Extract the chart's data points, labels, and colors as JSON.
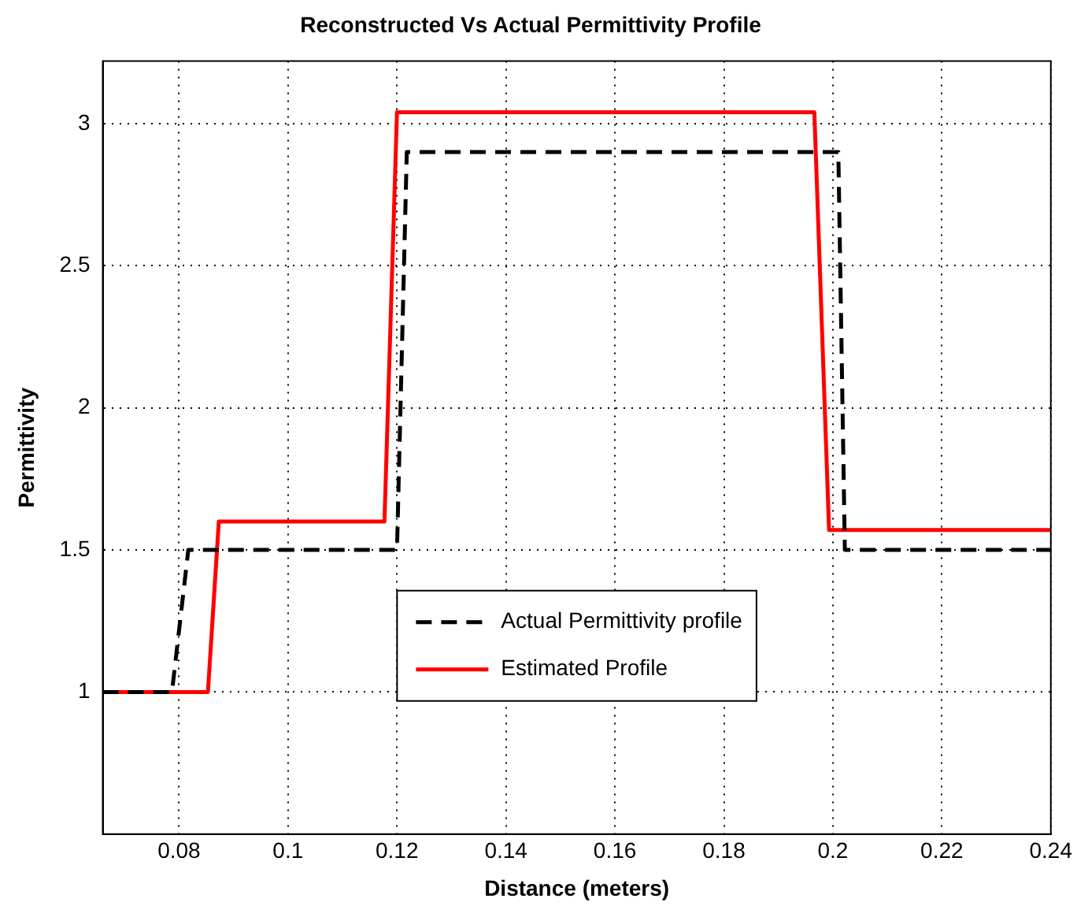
{
  "chart_data": {
    "type": "line",
    "title": "Reconstructed Vs Actual Permittivity Profile",
    "xlabel": "Distance (meters)",
    "ylabel": "Permittivity",
    "xlim": [
      0.066,
      0.24
    ],
    "xticks": [
      0.08,
      0.1,
      0.12,
      0.14,
      0.16,
      0.18,
      0.2,
      0.22,
      0.24
    ],
    "ylim": [
      0.5,
      3.22
    ],
    "yticks": [
      1,
      1.5,
      2,
      2.5,
      3
    ],
    "grid": true,
    "legend": "bottom",
    "marker": "none",
    "series": [
      {
        "name": "Actual Permittivity profile",
        "color": "#000000",
        "line_style": "dashed",
        "x": [
          0.066,
          0.0787,
          0.0817,
          0.12,
          0.1218,
          0.201,
          0.2022,
          0.24
        ],
        "values": [
          1,
          1,
          1.5,
          1.5,
          2.9,
          2.9,
          1.5,
          1.5
        ]
      },
      {
        "name": "Estimated Profile",
        "color": "#ff0000",
        "line_style": "solid",
        "x": [
          0.066,
          0.0853,
          0.0873,
          0.1177,
          0.12,
          0.1966,
          0.1993,
          0.24
        ],
        "values": [
          1,
          1,
          1.6,
          1.6,
          3.04,
          3.04,
          1.57,
          1.57
        ]
      }
    ]
  }
}
